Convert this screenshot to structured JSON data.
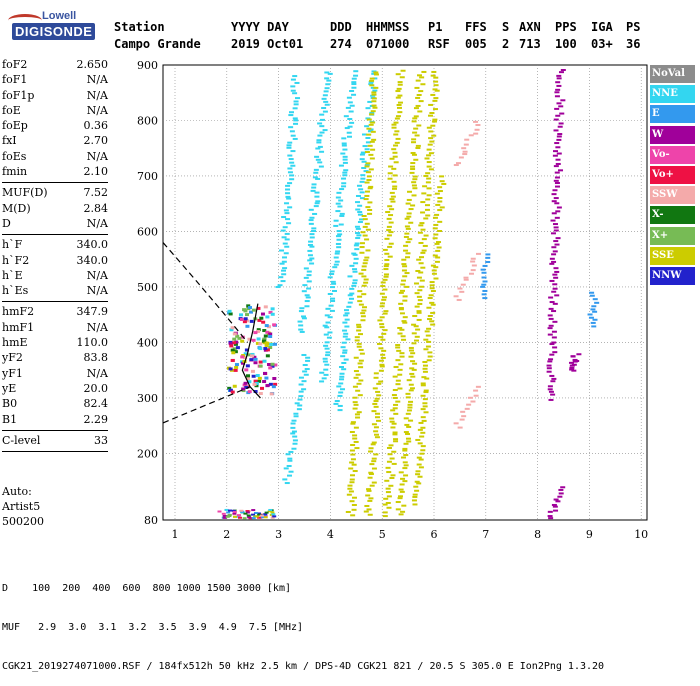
{
  "logo": {
    "line1": "Lowell",
    "line2": "DIGISONDE"
  },
  "header": {
    "station_label": "Station",
    "station_value": "Campo Grande",
    "date_label": "YYYY DAY",
    "date_value": "2019 Oct01",
    "ddd_label": "DDD",
    "ddd_value": "274",
    "time_label": "HHMMSS",
    "time_value": "071000",
    "p1_label": "P1",
    "p1_value": "RSF",
    "ffs_label": "FFS",
    "ffs_value": "005",
    "s_label": "S",
    "s_value": "2",
    "axn_label": "AXN",
    "axn_value": "713",
    "pps_label": "PPS",
    "pps_value": "100",
    "iga_label": "IGA",
    "iga_value": "03+",
    "ps_label": "PS",
    "ps_value": "36"
  },
  "params": [
    [
      {
        "label": "foF2",
        "value": "2.650"
      },
      {
        "label": "foF1",
        "value": "N/A"
      },
      {
        "label": "foF1p",
        "value": "N/A"
      },
      {
        "label": "foE",
        "value": "N/A"
      },
      {
        "label": "foEp",
        "value": "0.36"
      },
      {
        "label": "fxI",
        "value": "2.70"
      },
      {
        "label": "foEs",
        "value": "N/A"
      },
      {
        "label": "fmin",
        "value": "2.10"
      }
    ],
    [
      {
        "label": "MUF(D)",
        "value": "7.52"
      },
      {
        "label": "M(D)",
        "value": "2.84"
      },
      {
        "label": "D",
        "value": "N/A"
      }
    ],
    [
      {
        "label": "h`F",
        "value": "340.0"
      },
      {
        "label": "h`F2",
        "value": "340.0"
      },
      {
        "label": "h`E",
        "value": "N/A"
      },
      {
        "label": "h`Es",
        "value": "N/A"
      }
    ],
    [
      {
        "label": "hmF2",
        "value": "347.9"
      },
      {
        "label": "hmF1",
        "value": "N/A"
      },
      {
        "label": "hmE",
        "value": "110.0"
      },
      {
        "label": "yF2",
        "value": "83.8"
      },
      {
        "label": "yF1",
        "value": "N/A"
      },
      {
        "label": "yE",
        "value": "20.0"
      },
      {
        "label": "B0",
        "value": "82.4"
      },
      {
        "label": "B1",
        "value": "2.29"
      }
    ],
    [
      {
        "label": "C-level",
        "value": "33"
      }
    ]
  ],
  "auto": {
    "line1": "Auto:",
    "line2": "Artist5",
    "line3": "500200"
  },
  "legend": [
    {
      "label": "NoVal",
      "color": "#8c8c8c"
    },
    {
      "label": "NNE",
      "color": "#33d6f0"
    },
    {
      "label": "E",
      "color": "#3399ee"
    },
    {
      "label": "W",
      "color": "#a0009a"
    },
    {
      "label": "Vo-",
      "color": "#ee44aa"
    },
    {
      "label": "Vo+",
      "color": "#ee1144"
    },
    {
      "label": "SSW",
      "color": "#f4aaaa"
    },
    {
      "label": "X-",
      "color": "#117711"
    },
    {
      "label": "X+",
      "color": "#77bb55"
    },
    {
      "label": "SSE",
      "color": "#cccc00"
    },
    {
      "label": "NNW",
      "color": "#2222cc"
    }
  ],
  "bottom": {
    "line1": "D    100  200  400  600  800 1000 1500 3000 [km]",
    "line2": "MUF   2.9  3.0  3.1  3.2  3.5  3.9  4.9  7.5 [MHz]",
    "line3": "CGK21_2019274071000.RSF / 184fx512h 50 kHz 2.5 km / DPS-4D CGK21 821 / 20.5 S 305.0 E Ion2Png 1.3.20"
  },
  "chart_data": {
    "type": "scatter",
    "xlim": [
      0.8,
      10.0
    ],
    "ylim": [
      80,
      900
    ],
    "x_ticks": [
      "1",
      "2",
      "3",
      "4",
      "5",
      "6",
      "7",
      "8",
      "9",
      "10"
    ],
    "y_ticks": [
      "80",
      "200",
      "300",
      "400",
      "500",
      "600",
      "700",
      "800",
      "900"
    ],
    "grid": true,
    "traces": [
      {
        "name": "NNE",
        "color": "#33d6f0",
        "segments": [
          [
            3.0,
            500,
            3.3,
            880
          ],
          [
            3.4,
            420,
            3.9,
            890
          ],
          [
            3.8,
            330,
            4.4,
            890
          ],
          [
            4.1,
            280,
            4.8,
            890
          ],
          [
            3.1,
            150,
            3.5,
            380
          ]
        ]
      },
      {
        "name": "SSE",
        "color": "#cccc00",
        "segments": [
          [
            4.35,
            90,
            4.8,
            890
          ],
          [
            4.7,
            90,
            5.3,
            890
          ],
          [
            5.05,
            90,
            5.7,
            890
          ],
          [
            5.3,
            90,
            6.0,
            890
          ],
          [
            5.6,
            110,
            6.1,
            700
          ]
        ]
      },
      {
        "name": "SSW",
        "color": "#f4aaaa",
        "segments": [
          [
            6.4,
            720,
            6.8,
            800
          ],
          [
            6.4,
            480,
            6.8,
            560
          ],
          [
            6.4,
            250,
            6.8,
            320
          ]
        ]
      },
      {
        "name": "W",
        "color": "#a0009a",
        "segments": [
          [
            8.2,
            300,
            8.4,
            900
          ],
          [
            8.2,
            85,
            8.4,
            140
          ],
          [
            8.6,
            350,
            8.7,
            380
          ]
        ]
      },
      {
        "name": "E",
        "color": "#3399ee",
        "segments": [
          [
            9.0,
            430,
            9.05,
            490
          ],
          [
            6.9,
            480,
            6.95,
            560
          ]
        ]
      }
    ],
    "f_layer_cluster": {
      "x_range": [
        2.0,
        2.9
      ],
      "y_range": [
        310,
        470
      ]
    },
    "es_cluster": {
      "x_range": [
        1.8,
        2.9
      ],
      "y_range": [
        85,
        100
      ]
    },
    "profile_curve": [
      [
        2.6,
        470
      ],
      [
        2.5,
        420
      ],
      [
        2.4,
        380
      ],
      [
        2.3,
        350
      ],
      [
        2.45,
        320
      ],
      [
        2.65,
        300
      ]
    ]
  }
}
